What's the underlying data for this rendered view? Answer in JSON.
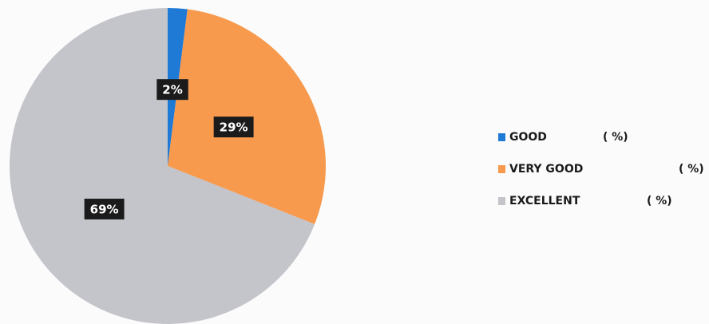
{
  "chart_data": {
    "type": "pie",
    "categories": [
      "GOOD",
      "VERY GOOD",
      "EXCELLENT"
    ],
    "values": [
      2,
      29,
      69
    ],
    "value_labels": [
      "2%",
      "29%",
      "69%"
    ],
    "colors": [
      "#1f7ad6",
      "#f79a4d",
      "#c4c4cb"
    ],
    "legend_suffix": "( %)",
    "legend": "right"
  }
}
